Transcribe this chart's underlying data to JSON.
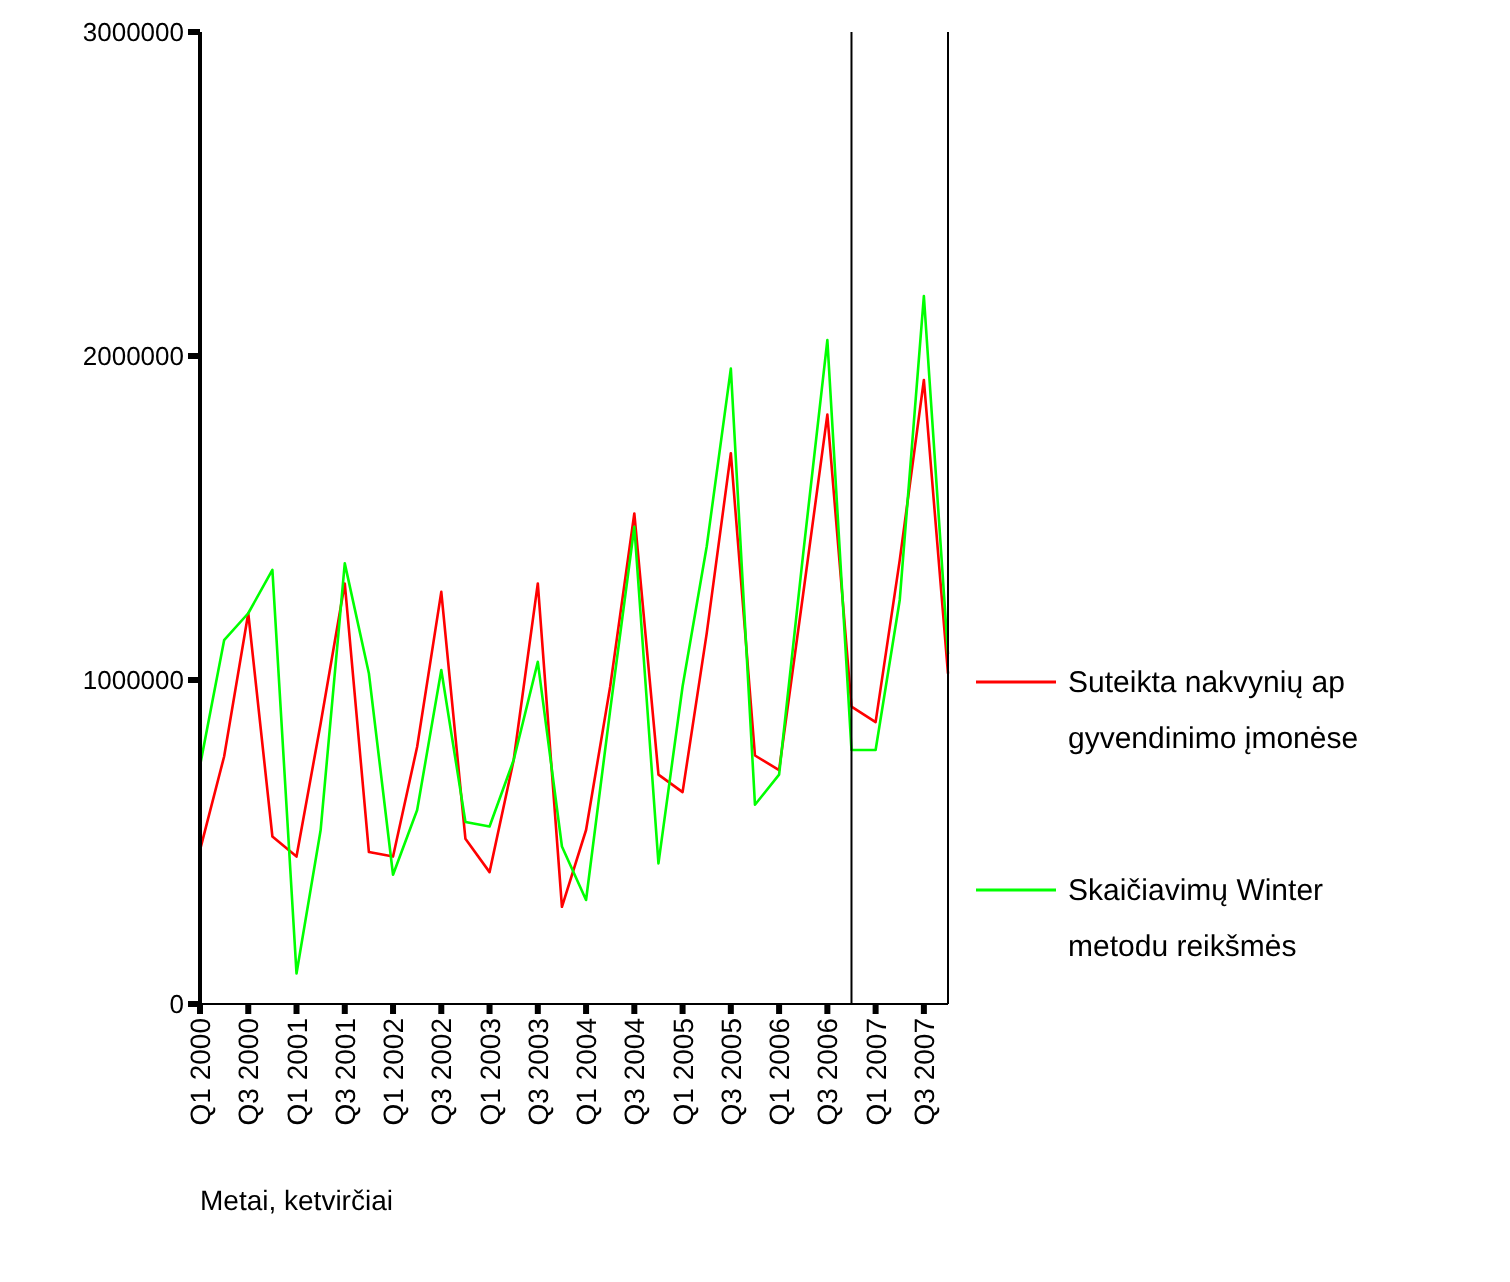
{
  "chart_data": {
    "type": "line",
    "xlabel": "Metai, ketvirčiai",
    "categories": [
      "Q1 2000",
      null,
      "Q3 2000",
      null,
      "Q1 2001",
      null,
      "Q3 2001",
      null,
      "Q1 2002",
      null,
      "Q3 2002",
      null,
      "Q1 2003",
      null,
      "Q3 2003",
      null,
      "Q1 2004",
      null,
      "Q3 2004",
      null,
      "Q1 2005",
      null,
      "Q3 2005",
      null,
      "Q1 2006",
      null,
      "Q3 2006",
      null,
      "Q1 2007",
      null,
      "Q3 2007",
      null
    ],
    "series": [
      {
        "name": "Suteikta nakvynių ap\ngyvendinimo įmonėse",
        "color": "#ff0000",
        "values": [
          475000,
          764000,
          1206000,
          517000,
          455000,
          866000,
          1298000,
          469000,
          455000,
          794000,
          1272000,
          510000,
          407000,
          753000,
          1298000,
          300000,
          537000,
          980000,
          1514000,
          708000,
          654000,
          1144000,
          1700000,
          767000,
          722000,
          1267000,
          1819000,
          918000,
          870000,
          1370000,
          1926000,
          1020000
        ]
      },
      {
        "name": "Skaičiavimų Winter\nmetodu reikšmės",
        "color": "#00ff00",
        "values": [
          735000,
          1123000,
          1206000,
          1340000,
          94000,
          537000,
          1360000,
          1020000,
          399000,
          599000,
          1031000,
          562000,
          548000,
          753000,
          1056000,
          486000,
          321000,
          907000,
          1473000,
          434000,
          980000,
          1412000,
          1961000,
          615000,
          708000,
          1391000,
          2049000,
          784000,
          784000,
          1247000,
          2185000,
          1080000
        ]
      }
    ],
    "ylim": [
      0,
      3000000
    ],
    "yticks": [
      0,
      1000000,
      2000000,
      3000000
    ],
    "grid": false,
    "legend": "right",
    "marker": "none",
    "line_style": "solid"
  }
}
